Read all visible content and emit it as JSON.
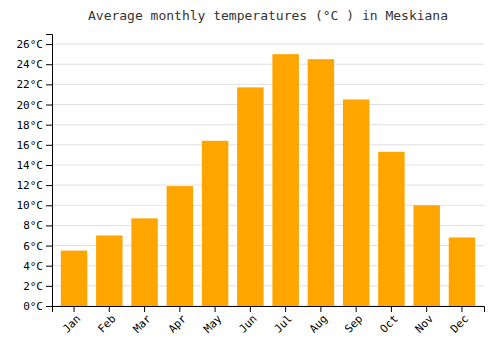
{
  "chart_data": {
    "type": "bar",
    "title": "Average monthly temperatures (°C ) in Meskiana",
    "categories": [
      "Jan",
      "Feb",
      "Mar",
      "Apr",
      "May",
      "Jun",
      "Jul",
      "Aug",
      "Sep",
      "Oct",
      "Nov",
      "Dec"
    ],
    "values": [
      5.5,
      7.0,
      8.7,
      11.9,
      16.4,
      21.7,
      25.0,
      24.5,
      20.5,
      15.3,
      10.0,
      6.8
    ],
    "color": "#FFA500",
    "ylim": [
      0,
      27
    ],
    "yticks": [
      {
        "value": 0,
        "label": "0°C"
      },
      {
        "value": 2,
        "label": "2°C"
      },
      {
        "value": 4,
        "label": "4°C"
      },
      {
        "value": 6,
        "label": "6°C"
      },
      {
        "value": 8,
        "label": "8°C"
      },
      {
        "value": 10,
        "label": "10°C"
      },
      {
        "value": 12,
        "label": "12°C"
      },
      {
        "value": 14,
        "label": "14°C"
      },
      {
        "value": 16,
        "label": "16°C"
      },
      {
        "value": 18,
        "label": "18°C"
      },
      {
        "value": 20,
        "label": "20°C"
      },
      {
        "value": 22,
        "label": "22°C"
      },
      {
        "value": 24,
        "label": "24°C"
      },
      {
        "value": 26,
        "label": "26°C"
      }
    ],
    "grid": true
  }
}
